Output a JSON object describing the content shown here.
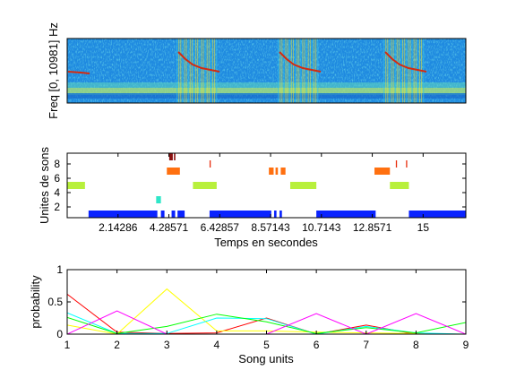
{
  "chart_data": [
    {
      "type": "heatmap",
      "ylabel": "Freq [0, 10981] Hz",
      "colors": {
        "low": "#1e7fd8",
        "mid": "#39c6e6",
        "high": "#e6e23a",
        "trace": "#d42a10"
      }
    },
    {
      "type": "scatter",
      "xlabel": "Temps en secondes",
      "ylabel": "Unites de sons",
      "xlim": [
        0,
        16.8
      ],
      "ylim": [
        9.5,
        0.5
      ],
      "xticks": [
        "2.14286",
        "4.28571",
        "6.42857",
        "8.57143",
        "10.7143",
        "12.8571",
        "15"
      ],
      "xtick_values": [
        2.14286,
        4.28571,
        6.42857,
        8.57143,
        10.7143,
        12.8571,
        15
      ],
      "yticks": [
        "2",
        "4",
        "6",
        "8"
      ],
      "ytick_values": [
        2,
        4,
        6,
        8
      ],
      "unit_colors": [
        "#0a23ff",
        "#0a23ff",
        "#2ee6c8",
        "#3cf08c",
        "#b8f03c",
        "#ffd000",
        "#ff7010",
        "#e83010",
        "#8a1010"
      ],
      "segments": [
        {
          "unit": 1,
          "start": 0.9,
          "end": 3.8
        },
        {
          "unit": 1,
          "start": 3.95,
          "end": 4.1
        },
        {
          "unit": 1,
          "start": 4.4,
          "end": 4.55
        },
        {
          "unit": 1,
          "start": 4.65,
          "end": 4.95
        },
        {
          "unit": 1,
          "start": 6.0,
          "end": 8.6
        },
        {
          "unit": 1,
          "start": 8.72,
          "end": 8.82
        },
        {
          "unit": 1,
          "start": 8.95,
          "end": 9.05
        },
        {
          "unit": 1,
          "start": 10.5,
          "end": 13.0
        },
        {
          "unit": 1,
          "start": 14.4,
          "end": 16.8
        },
        {
          "unit": 3,
          "start": 3.75,
          "end": 3.95
        },
        {
          "unit": 5,
          "start": 0.0,
          "end": 0.75
        },
        {
          "unit": 5,
          "start": 5.3,
          "end": 6.3
        },
        {
          "unit": 5,
          "start": 9.4,
          "end": 10.5
        },
        {
          "unit": 5,
          "start": 13.6,
          "end": 14.4
        },
        {
          "unit": 7,
          "start": 4.2,
          "end": 4.75
        },
        {
          "unit": 7,
          "start": 8.5,
          "end": 8.7
        },
        {
          "unit": 7,
          "start": 8.78,
          "end": 8.88
        },
        {
          "unit": 7,
          "start": 9.0,
          "end": 9.2
        },
        {
          "unit": 7,
          "start": 12.95,
          "end": 13.6
        },
        {
          "unit": 8,
          "start": 6.0,
          "end": 6.05
        },
        {
          "unit": 8,
          "start": 13.85,
          "end": 13.9
        },
        {
          "unit": 8,
          "start": 14.28,
          "end": 14.33
        },
        {
          "unit": 9,
          "start": 4.3,
          "end": 4.45
        },
        {
          "unit": 9,
          "start": 4.5,
          "end": 4.56
        }
      ]
    },
    {
      "type": "line",
      "xlabel": "Song units",
      "ylabel": "probability",
      "x": [
        1,
        2,
        3,
        4,
        5,
        6,
        7,
        8,
        9
      ],
      "xticks": [
        "1",
        "2",
        "3",
        "4",
        "5",
        "6",
        "7",
        "8",
        "9"
      ],
      "yticks": [
        "0",
        "0.5",
        "1"
      ],
      "ytick_values": [
        0,
        0.5,
        1
      ],
      "xlim": [
        1,
        9
      ],
      "ylim": [
        0,
        1
      ],
      "series": [
        {
          "color": "#ff0000",
          "values": [
            0.62,
            0.03,
            0.01,
            0.02,
            0.25,
            0.0,
            0.14,
            0.0,
            0.0
          ]
        },
        {
          "color": "#ffff00",
          "values": [
            0.14,
            0.0,
            0.7,
            0.05,
            0.05,
            0.03,
            0.02,
            0.01,
            0.0
          ]
        },
        {
          "color": "#00ffff",
          "values": [
            0.33,
            0.01,
            0.01,
            0.25,
            0.24,
            0.0,
            0.12,
            0.02,
            0.0
          ]
        },
        {
          "color": "#00ff00",
          "values": [
            0.26,
            0.01,
            0.12,
            0.31,
            0.19,
            0.01,
            0.1,
            0.02,
            0.18
          ]
        },
        {
          "color": "#ff00ff",
          "values": [
            0.0,
            0.36,
            0.0,
            0.0,
            0.0,
            0.32,
            0.0,
            0.32,
            0.0
          ]
        }
      ]
    }
  ]
}
